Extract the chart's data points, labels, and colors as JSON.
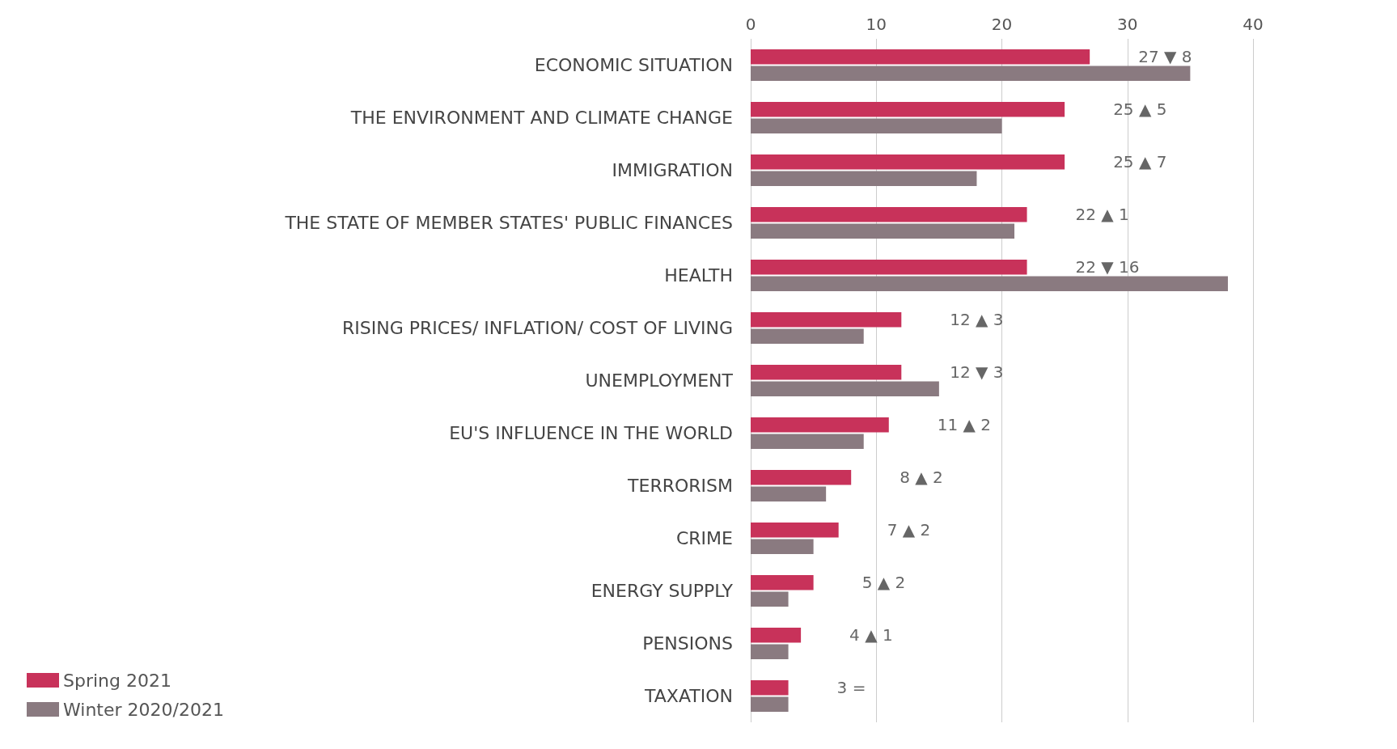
{
  "chart_data": {
    "type": "bar",
    "orientation": "horizontal",
    "categories": [
      "ECONOMIC SITUATION",
      "THE ENVIRONMENT AND CLIMATE CHANGE",
      "IMMIGRATION",
      "THE STATE OF MEMBER STATES' PUBLIC FINANCES",
      "HEALTH",
      "RISING PRICES/ INFLATION/ COST OF LIVING",
      "UNEMPLOYMENT",
      "EU'S INFLUENCE IN THE WORLD",
      "TERRORISM",
      "CRIME",
      "ENERGY SUPPLY",
      "PENSIONS",
      "TAXATION"
    ],
    "series": [
      {
        "name": "Spring 2021",
        "color": "#c8325a",
        "values": [
          27,
          25,
          25,
          22,
          22,
          12,
          12,
          11,
          8,
          7,
          5,
          4,
          3
        ],
        "value_labels": [
          "27 ▼ 8",
          "25 ▲ 5",
          "25 ▲ 7",
          "22 ▲ 1",
          "22 ▼ 16",
          "12 ▲ 3",
          "12 ▼ 3",
          "11 ▲ 2",
          "8 ▲ 2",
          "7 ▲ 2",
          "5 ▲ 2",
          "4 ▲ 1",
          "3 ="
        ]
      },
      {
        "name": "Winter 2020/2021",
        "color": "#8a7a80",
        "values": [
          35,
          20,
          18,
          21,
          38,
          9,
          15,
          9,
          6,
          5,
          3,
          3,
          3
        ]
      }
    ],
    "xlim": [
      0,
      40
    ],
    "xticks": [
      0,
      10,
      20,
      30,
      40
    ],
    "grid": "x",
    "legend": "bottom left"
  }
}
